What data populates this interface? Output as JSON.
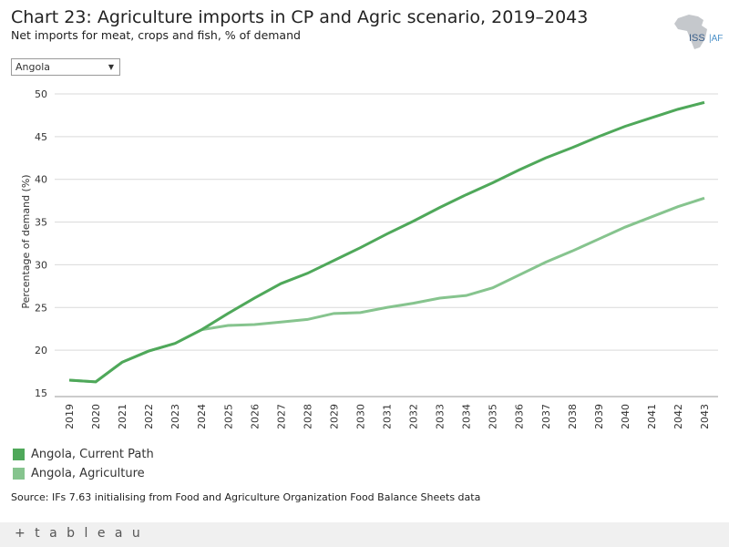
{
  "title": "Chart 23: Agriculture imports in CP and Agric scenario, 2019–2043",
  "subtitle": "Net imports for meat, crops and fish, % of demand",
  "logo_text": "ISS|AFRICA",
  "filter": {
    "selected": "Angola"
  },
  "source": "Source: IFs 7.63 initialising from Food and Agriculture Organization Food Balance Sheets data",
  "footer": {
    "brand": "+ t a b l e a u"
  },
  "colors": {
    "cp": "#4fa85a",
    "agric": "#86c48e"
  },
  "chart_data": {
    "type": "line",
    "title": "Chart 23: Agriculture imports in CP and Agric scenario, 2019–2043",
    "ylabel": "Percentage of demand (%)",
    "xlabel": "",
    "ylim": [
      15,
      50
    ],
    "yticks": [
      15,
      20,
      25,
      30,
      35,
      40,
      45,
      50
    ],
    "x": [
      "2019",
      "2020",
      "2021",
      "2022",
      "2023",
      "2024",
      "2025",
      "2026",
      "2027",
      "2028",
      "2029",
      "2030",
      "2031",
      "2032",
      "2033",
      "2034",
      "2035",
      "2036",
      "2037",
      "2038",
      "2039",
      "2040",
      "2041",
      "2042",
      "2043"
    ],
    "legend_position": "bottom-left",
    "grid": true,
    "series": [
      {
        "name": "Angola, Current Path",
        "values": [
          16.5,
          16.3,
          18.6,
          19.9,
          20.8,
          22.4,
          24.3,
          26.1,
          27.8,
          29.0,
          30.5,
          32.0,
          33.6,
          35.1,
          36.7,
          38.2,
          39.6,
          41.1,
          42.5,
          43.7,
          45.0,
          46.2,
          47.2,
          48.2,
          49.0
        ]
      },
      {
        "name": "Angola, Agriculture",
        "values": [
          16.5,
          16.3,
          18.6,
          19.9,
          20.8,
          22.4,
          22.9,
          23.0,
          23.3,
          23.6,
          24.3,
          24.4,
          25.0,
          25.5,
          26.1,
          26.4,
          27.3,
          28.8,
          30.3,
          31.6,
          33.0,
          34.4,
          35.6,
          36.8,
          37.8
        ]
      }
    ]
  }
}
